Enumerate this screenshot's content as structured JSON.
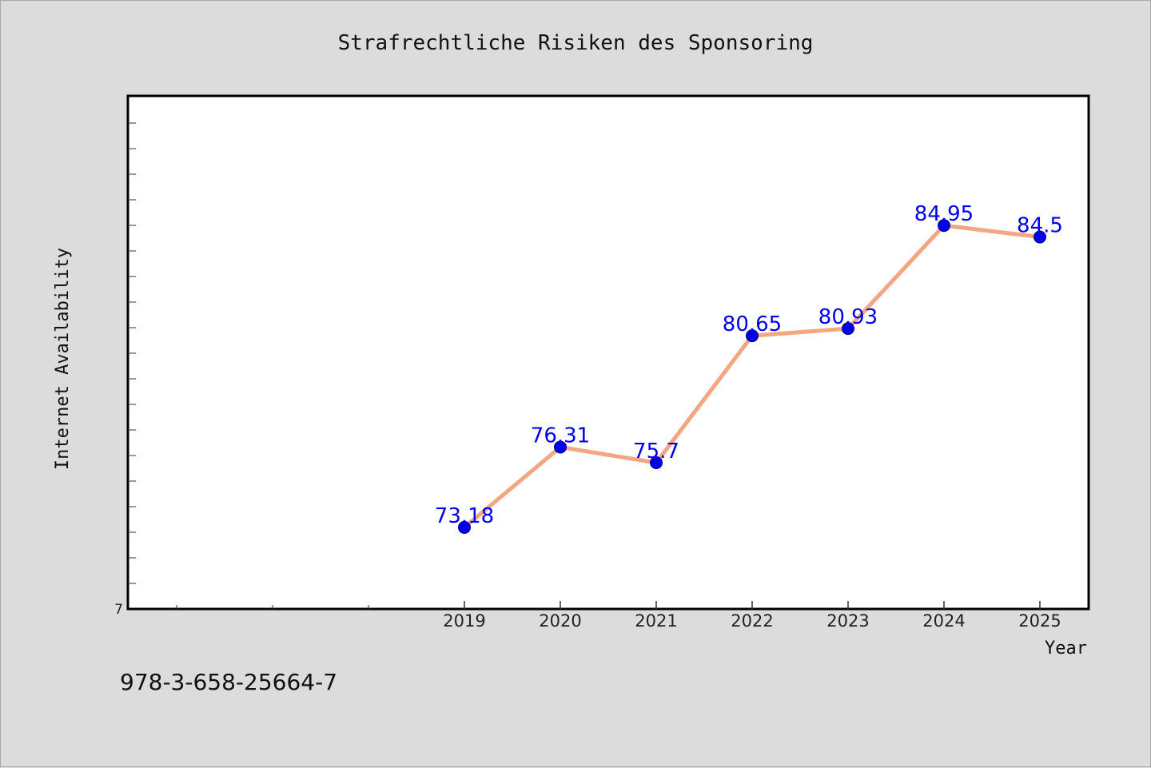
{
  "chart_data": {
    "type": "line",
    "title": "Strafrechtliche Risiken des Sponsoring",
    "xlabel": "Year",
    "ylabel": "Internet Availability",
    "categories": [
      "2019",
      "2020",
      "2021",
      "2022",
      "2023",
      "2024",
      "2025"
    ],
    "series": [
      {
        "values": [
          73.18,
          76.31,
          75.7,
          80.65,
          80.93,
          84.95,
          84.5
        ],
        "data_labels": [
          "73.18",
          "76.31",
          "75.7",
          "80.65",
          "80.93",
          "84.95",
          "84.5"
        ]
      }
    ],
    "y_tick_label": "7",
    "ylim": [
      70,
      90
    ],
    "grid": false,
    "legend": "none",
    "colors": {
      "line": "#f4a582",
      "marker": "#0000ee",
      "label": "#0000ee",
      "background": "#dcdcdc",
      "plot_background": "#ffffff"
    }
  },
  "footer": {
    "isbn": "978-3-658-25664-7"
  }
}
